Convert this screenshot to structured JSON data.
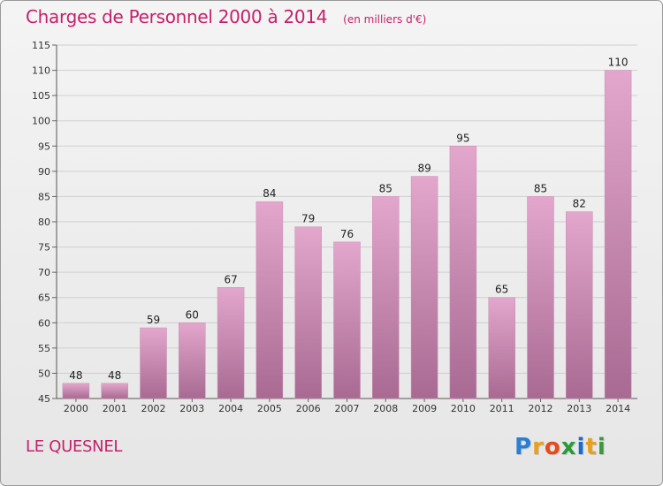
{
  "header": {
    "title": "Charges de Personnel 2000 à 2014",
    "subtitle": "(en milliers d'€)"
  },
  "footer": {
    "commune": "LE QUESNEL",
    "logo_letters": [
      "P",
      "r",
      "o",
      "x",
      "i",
      "t",
      "i"
    ],
    "logo_colors": [
      "#2a7fd4",
      "#e8a020",
      "#e84a1a",
      "#2a9a3a",
      "#1a6ad0",
      "#e8a020",
      "#3a9a3a"
    ]
  },
  "chart_data": {
    "type": "bar",
    "title": "Charges de Personnel 2000 à 2014",
    "xlabel": "",
    "ylabel": "",
    "categories": [
      "2000",
      "2001",
      "2002",
      "2003",
      "2004",
      "2005",
      "2006",
      "2007",
      "2008",
      "2009",
      "2010",
      "2011",
      "2012",
      "2013",
      "2014"
    ],
    "values": [
      48,
      48,
      59,
      60,
      67,
      84,
      79,
      76,
      85,
      89,
      95,
      65,
      85,
      82,
      110
    ],
    "data_labels": [
      "48",
      "48",
      "59",
      "60",
      "67",
      "84",
      "79",
      "76",
      "85",
      "89",
      "95",
      "65",
      "85",
      "82",
      "110"
    ],
    "ylim": [
      45,
      115
    ],
    "yticks": [
      "45",
      "50",
      "55",
      "60",
      "65",
      "70",
      "75",
      "80",
      "85",
      "90",
      "95",
      "100",
      "105",
      "110",
      "115"
    ],
    "grid": true,
    "bar_color_top": "#e3a6cc",
    "bar_color_bottom": "#a86a92"
  }
}
